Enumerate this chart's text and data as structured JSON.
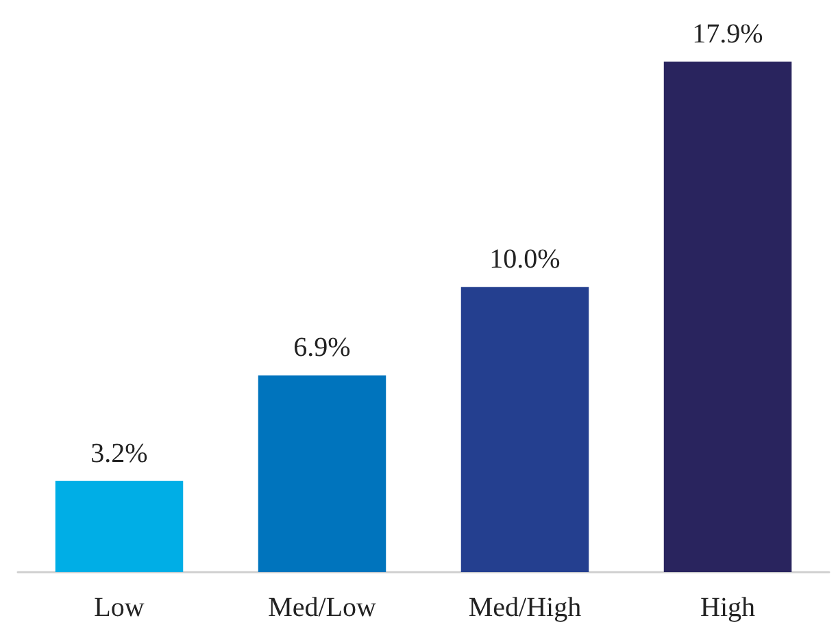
{
  "chart_data": {
    "type": "bar",
    "categories": [
      "Low",
      "Med/Low",
      "Med/High",
      "High"
    ],
    "values": [
      3.2,
      6.9,
      10.0,
      17.9
    ],
    "colors": [
      "#00aee6",
      "#0074bd",
      "#243f8f",
      "#29245e"
    ],
    "value_labels": [
      "3.2%",
      "6.9%",
      "10.0%",
      "17.9%"
    ]
  }
}
